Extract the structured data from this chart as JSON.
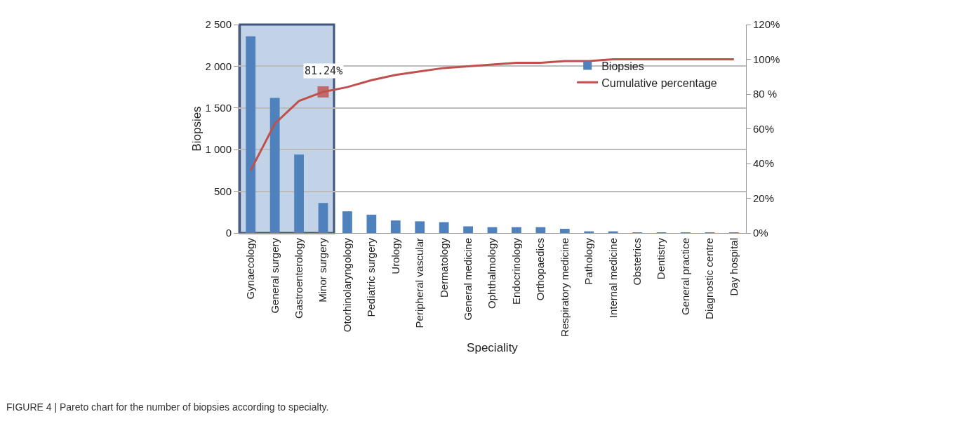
{
  "chart_data": {
    "type": "bar",
    "xlabel": "Speciality",
    "ylabel": "Biopsies",
    "categories": [
      "Gynaecology",
      "General surgery",
      "Gastroenterology",
      "Minor surgery",
      "Otorhinolaryngology",
      "Pediatric surgery",
      "Urology",
      "Peripheral vascular",
      "Dermatology",
      "General medicine",
      "Ophthalmology",
      "Endocrinology",
      "Orthopaedics",
      "Respiratory medicine",
      "Pathology",
      "Internal medicine",
      "Obstetrics",
      "Dentistry",
      "General practice",
      "Diagnostic centre",
      "Day hospital"
    ],
    "series": [
      {
        "name": "Biopsies",
        "color": "#4f81bd",
        "values": [
          2360,
          1620,
          940,
          360,
          260,
          220,
          150,
          140,
          130,
          80,
          70,
          70,
          70,
          50,
          20,
          20,
          5,
          5,
          5,
          5,
          5
        ]
      },
      {
        "name": "Cumulative percentage",
        "type": "line",
        "axis": "y2",
        "color": "#c0504d",
        "values": [
          36,
          63,
          76,
          81.24,
          84,
          88,
          91,
          93,
          95,
          96,
          97,
          98,
          98,
          99,
          99,
          100,
          100,
          100,
          100,
          100,
          100
        ],
        "value_labels": [
          null,
          null,
          null,
          "81.24%",
          null,
          null,
          null,
          null,
          null,
          null,
          null,
          null,
          null,
          null,
          null,
          null,
          null,
          null,
          null,
          null,
          null
        ]
      }
    ],
    "ylim": [
      0,
      2500
    ],
    "yticks": [
      0,
      500,
      {
        "value": 1000,
        "label": "1 000"
      },
      {
        "value": 1500,
        "label": "1 500"
      },
      {
        "value": 2000,
        "label": "2 000"
      },
      {
        "value": 2500,
        "label": "2 500"
      }
    ],
    "y2lim": [
      0,
      120
    ],
    "y2ticks": [
      {
        "value": 0,
        "label": "0%"
      },
      {
        "value": 20,
        "label": "20%"
      },
      {
        "value": 40,
        "label": "40%"
      },
      {
        "value": 60,
        "label": "60%"
      },
      {
        "value": 80,
        "label": "80 %"
      },
      {
        "value": 100,
        "label": "100%"
      },
      {
        "value": 120,
        "label": "120%"
      }
    ],
    "bands": [
      {
        "axis": "x",
        "from": "Gynaecology",
        "to": "Minor surgery",
        "label": null,
        "color": "#b8cce4"
      }
    ],
    "annotations": [
      "FIGURE 4 | Pareto chart for the number of biopsies according to specialty."
    ],
    "grid": "y",
    "legend": "top right",
    "line_style": "solid"
  }
}
